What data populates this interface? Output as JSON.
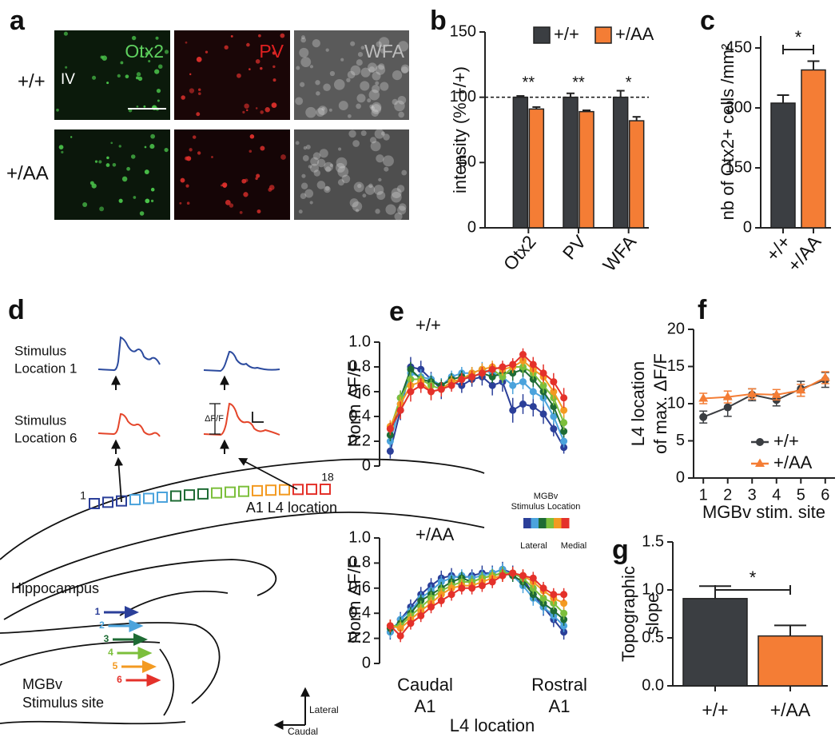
{
  "panel_a": {
    "panel": "a",
    "rows": [
      "+/+",
      "+/AA"
    ],
    "channels": [
      "Otx2",
      "PV",
      "WFA"
    ],
    "layer": "IV"
  },
  "panel_d": {
    "panel": "d",
    "traces": [
      [
        "Stimulus",
        "Location 1"
      ],
      [
        "Stimulus",
        "Location 6"
      ]
    ],
    "scale_label": "ΔF/F",
    "first_location": "1",
    "last_location": "18",
    "l4_label": "A1 L4 location",
    "hippocampus": "Hippocampus",
    "mgbv": [
      "MGBv",
      "Stimulus site"
    ],
    "sites": [
      "1",
      "2",
      "3",
      "4",
      "5",
      "6"
    ],
    "compass": [
      "Lateral",
      "Caudal"
    ]
  },
  "chart_data": [
    {
      "type": "bar",
      "panel": "b",
      "ylabel": "intensity (% +/+)",
      "categories": [
        "Otx2",
        "PV",
        "WFA"
      ],
      "series": [
        {
          "name": "+/+",
          "color": "#3b3e42",
          "values": [
            100,
            100,
            100
          ],
          "errors": [
            1,
            3,
            5
          ]
        },
        {
          "name": "+/AA",
          "color": "#f47d35",
          "values": [
            91,
            89,
            82
          ],
          "errors": [
            1.5,
            1,
            3
          ]
        }
      ],
      "annotations": [
        "**",
        "**",
        "*"
      ],
      "reference_line": 100,
      "ylim": [
        0,
        150
      ],
      "yticks": [
        0,
        50,
        100,
        150
      ],
      "legend": "top"
    },
    {
      "type": "bar",
      "panel": "c",
      "ylabel": "nb of Otx2+ cells /mm²",
      "categories": [
        "+/+",
        "+/AA"
      ],
      "values": [
        312,
        395
      ],
      "errors": [
        20,
        22
      ],
      "colors": [
        "#3b3e42",
        "#f47d35"
      ],
      "significance": "*",
      "ylim": [
        0,
        480
      ],
      "yticks": [
        0,
        150,
        300,
        450
      ]
    },
    {
      "type": "line",
      "panel": "e",
      "label": "+/+",
      "ylabel": "Norm ΔF/F",
      "x": [
        1,
        2,
        3,
        4,
        5,
        6,
        7,
        8,
        9,
        10,
        11,
        12,
        13,
        14,
        15,
        16,
        17,
        18
      ],
      "series": [
        {
          "color": "#2b3f99",
          "values": [
            0.12,
            0.45,
            0.8,
            0.78,
            0.7,
            0.62,
            0.68,
            0.65,
            0.7,
            0.72,
            0.65,
            0.68,
            0.45,
            0.5,
            0.48,
            0.42,
            0.3,
            0.15
          ],
          "errors": [
            0.06,
            0.08,
            0.08,
            0.07,
            0.06,
            0.08,
            0.06,
            0.06,
            0.06,
            0.07,
            0.08,
            0.08,
            0.1,
            0.08,
            0.08,
            0.08,
            0.06,
            0.05
          ]
        },
        {
          "color": "#4ba3dc",
          "values": [
            0.2,
            0.5,
            0.75,
            0.72,
            0.7,
            0.65,
            0.72,
            0.75,
            0.75,
            0.78,
            0.75,
            0.72,
            0.65,
            0.68,
            0.6,
            0.55,
            0.4,
            0.2
          ],
          "errors": [
            0.05,
            0.07,
            0.06,
            0.06,
            0.05,
            0.06,
            0.05,
            0.05,
            0.05,
            0.06,
            0.06,
            0.06,
            0.07,
            0.06,
            0.06,
            0.07,
            0.06,
            0.05
          ]
        },
        {
          "color": "#1e6b34",
          "values": [
            0.25,
            0.55,
            0.78,
            0.7,
            0.68,
            0.65,
            0.7,
            0.72,
            0.72,
            0.75,
            0.72,
            0.75,
            0.75,
            0.78,
            0.7,
            0.6,
            0.48,
            0.28
          ],
          "errors": [
            0.05,
            0.06,
            0.06,
            0.05,
            0.05,
            0.05,
            0.05,
            0.05,
            0.05,
            0.05,
            0.05,
            0.05,
            0.06,
            0.06,
            0.06,
            0.06,
            0.06,
            0.05
          ]
        },
        {
          "color": "#7cbf3c",
          "values": [
            0.3,
            0.55,
            0.7,
            0.7,
            0.65,
            0.62,
            0.68,
            0.7,
            0.72,
            0.75,
            0.78,
            0.72,
            0.8,
            0.8,
            0.75,
            0.65,
            0.55,
            0.35
          ],
          "errors": [
            0.05,
            0.06,
            0.06,
            0.05,
            0.05,
            0.05,
            0.05,
            0.05,
            0.05,
            0.05,
            0.05,
            0.05,
            0.05,
            0.05,
            0.05,
            0.06,
            0.06,
            0.06
          ]
        },
        {
          "color": "#f39a21",
          "values": [
            0.32,
            0.5,
            0.65,
            0.68,
            0.6,
            0.62,
            0.68,
            0.7,
            0.75,
            0.78,
            0.8,
            0.78,
            0.8,
            0.85,
            0.78,
            0.72,
            0.6,
            0.45
          ],
          "errors": [
            0.05,
            0.06,
            0.06,
            0.05,
            0.06,
            0.05,
            0.05,
            0.05,
            0.05,
            0.05,
            0.05,
            0.05,
            0.05,
            0.05,
            0.05,
            0.06,
            0.06,
            0.06
          ]
        },
        {
          "color": "#e4312a",
          "values": [
            0.3,
            0.45,
            0.6,
            0.65,
            0.6,
            0.62,
            0.65,
            0.7,
            0.72,
            0.75,
            0.78,
            0.8,
            0.82,
            0.9,
            0.82,
            0.75,
            0.68,
            0.55
          ],
          "errors": [
            0.05,
            0.07,
            0.08,
            0.06,
            0.07,
            0.06,
            0.05,
            0.05,
            0.05,
            0.05,
            0.05,
            0.05,
            0.05,
            0.05,
            0.06,
            0.07,
            0.07,
            0.08
          ]
        }
      ],
      "xlim": [
        0.5,
        18.5
      ],
      "ylim": [
        0,
        1
      ],
      "yticks": [
        0,
        0.2,
        0.4,
        0.6,
        0.8,
        {
          "value": 1,
          "label": "1.0"
        }
      ]
    },
    {
      "type": "line",
      "label": "+/AA",
      "ylabel": "Norm ΔF/F",
      "x": [
        1,
        2,
        3,
        4,
        5,
        6,
        7,
        8,
        9,
        10,
        11,
        12,
        13,
        14,
        15,
        16,
        17,
        18
      ],
      "series": [
        {
          "color": "#2b3f99",
          "values": [
            0.25,
            0.35,
            0.45,
            0.55,
            0.62,
            0.68,
            0.7,
            0.68,
            0.7,
            0.72,
            0.72,
            0.75,
            0.72,
            0.68,
            0.55,
            0.45,
            0.35,
            0.25
          ],
          "errors": [
            0.06,
            0.06,
            0.06,
            0.06,
            0.06,
            0.06,
            0.06,
            0.05,
            0.05,
            0.06,
            0.06,
            0.06,
            0.06,
            0.06,
            0.07,
            0.07,
            0.06,
            0.06
          ]
        },
        {
          "color": "#4ba3dc",
          "values": [
            0.25,
            0.35,
            0.42,
            0.52,
            0.58,
            0.65,
            0.68,
            0.7,
            0.68,
            0.7,
            0.72,
            0.75,
            0.7,
            0.62,
            0.52,
            0.45,
            0.38,
            0.3
          ],
          "errors": [
            0.05,
            0.05,
            0.05,
            0.05,
            0.05,
            0.05,
            0.05,
            0.05,
            0.05,
            0.05,
            0.05,
            0.05,
            0.05,
            0.06,
            0.06,
            0.06,
            0.05,
            0.05
          ]
        },
        {
          "color": "#1e6b34",
          "values": [
            0.28,
            0.32,
            0.4,
            0.5,
            0.55,
            0.6,
            0.65,
            0.68,
            0.65,
            0.68,
            0.7,
            0.72,
            0.7,
            0.65,
            0.55,
            0.48,
            0.42,
            0.35
          ],
          "errors": [
            0.05,
            0.05,
            0.05,
            0.05,
            0.05,
            0.05,
            0.05,
            0.05,
            0.05,
            0.05,
            0.05,
            0.05,
            0.05,
            0.05,
            0.05,
            0.05,
            0.05,
            0.05
          ]
        },
        {
          "color": "#7cbf3c",
          "values": [
            0.3,
            0.3,
            0.38,
            0.45,
            0.52,
            0.58,
            0.62,
            0.65,
            0.65,
            0.68,
            0.7,
            0.72,
            0.72,
            0.68,
            0.6,
            0.52,
            0.48,
            0.4
          ],
          "errors": [
            0.05,
            0.05,
            0.05,
            0.05,
            0.05,
            0.05,
            0.05,
            0.05,
            0.05,
            0.05,
            0.05,
            0.05,
            0.05,
            0.05,
            0.05,
            0.05,
            0.05,
            0.05
          ]
        },
        {
          "color": "#f39a21",
          "values": [
            0.3,
            0.28,
            0.35,
            0.42,
            0.48,
            0.55,
            0.6,
            0.62,
            0.62,
            0.65,
            0.68,
            0.7,
            0.72,
            0.7,
            0.65,
            0.58,
            0.52,
            0.48
          ],
          "errors": [
            0.05,
            0.05,
            0.05,
            0.05,
            0.05,
            0.05,
            0.05,
            0.05,
            0.05,
            0.05,
            0.05,
            0.05,
            0.05,
            0.05,
            0.05,
            0.05,
            0.05,
            0.05
          ]
        },
        {
          "color": "#e4312a",
          "values": [
            0.3,
            0.22,
            0.32,
            0.38,
            0.45,
            0.5,
            0.55,
            0.6,
            0.6,
            0.62,
            0.65,
            0.7,
            0.72,
            0.7,
            0.68,
            0.6,
            0.55,
            0.55
          ],
          "errors": [
            0.05,
            0.05,
            0.05,
            0.05,
            0.05,
            0.05,
            0.05,
            0.05,
            0.05,
            0.05,
            0.05,
            0.05,
            0.05,
            0.05,
            0.05,
            0.05,
            0.05,
            0.05
          ]
        }
      ],
      "colorbar": {
        "title": [
          "MGBv",
          "Stimulus Location"
        ],
        "labels": [
          "Lateral",
          "Medial"
        ]
      },
      "x_end_labels": [
        [
          "Caudal",
          "A1"
        ],
        [
          "Rostral",
          "A1"
        ]
      ],
      "xlabel": "L4 location",
      "xlim": [
        0.5,
        18.5
      ],
      "ylim": [
        0,
        1
      ],
      "yticks": [
        0,
        0.2,
        0.4,
        0.6,
        0.8,
        {
          "value": 1,
          "label": "1.0"
        }
      ]
    },
    {
      "type": "line",
      "panel": "f",
      "ylabel": [
        "L4 location",
        "of max. ΔF/F"
      ],
      "xlabel": "MGBv stim. site",
      "x": [
        1,
        2,
        3,
        4,
        5,
        6
      ],
      "series": [
        {
          "name": "+/+",
          "color": "#3b3e42",
          "marker": "circle",
          "values": [
            8.2,
            9.5,
            11.2,
            10.5,
            12,
            13.2
          ],
          "errors": [
            0.8,
            1.2,
            0.8,
            0.8,
            1,
            1
          ]
        },
        {
          "name": "+/AA",
          "color": "#f47d35",
          "marker": "triangle",
          "values": [
            10.7,
            10.9,
            11.3,
            11.2,
            11.8,
            13.5
          ],
          "errors": [
            0.7,
            0.8,
            0.7,
            0.7,
            0.8,
            0.8
          ]
        }
      ],
      "xlim": [
        0.6,
        6.4
      ],
      "xticks": [
        1,
        2,
        3,
        4,
        5,
        6
      ],
      "ylim": [
        0,
        20
      ],
      "yticks": [
        0,
        5,
        10,
        15,
        20
      ],
      "legend": "lower right"
    },
    {
      "type": "bar",
      "panel": "g",
      "ylabel": [
        "Topographic",
        "slope"
      ],
      "categories": [
        "+/+",
        "+/AA"
      ],
      "values": [
        0.91,
        0.52
      ],
      "errors": [
        0.13,
        0.11
      ],
      "colors": [
        "#3b3e42",
        "#f47d35"
      ],
      "significance": "*",
      "ylim": [
        0,
        1.5
      ],
      "yticks": [
        {
          "value": 0,
          "label": "0.0"
        },
        {
          "value": 0.5,
          "label": "0.5"
        },
        {
          "value": 1,
          "label": "1.0"
        },
        {
          "value": 1.5,
          "label": "1.5"
        }
      ]
    }
  ]
}
